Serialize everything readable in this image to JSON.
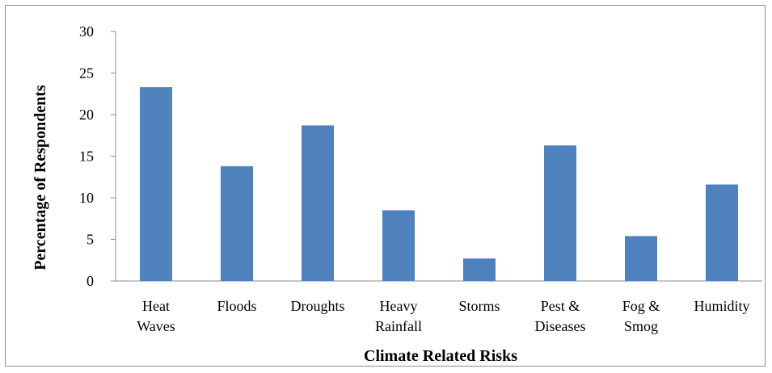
{
  "chart_data": {
    "type": "bar",
    "title": "",
    "xlabel": "Climate Related Risks",
    "ylabel": "Percentage of Respondents",
    "categories": [
      [
        "Heat",
        "Waves"
      ],
      [
        "Floods"
      ],
      [
        "Droughts"
      ],
      [
        "Heavy",
        "Rainfall"
      ],
      [
        "Storms"
      ],
      [
        "Pest &",
        "Diseases"
      ],
      [
        "Fog &",
        "Smog"
      ],
      [
        "Humidity"
      ]
    ],
    "values": [
      23.3,
      13.8,
      18.7,
      8.5,
      2.7,
      16.3,
      5.4,
      11.6
    ],
    "ylim": [
      0,
      30
    ],
    "yticks": [
      0,
      5,
      10,
      15,
      20,
      25,
      30
    ],
    "grid": false,
    "legend": "none",
    "bar_color": "#4f81bd"
  }
}
